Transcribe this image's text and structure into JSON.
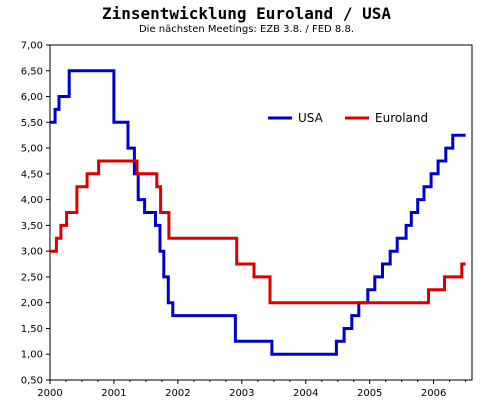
{
  "chart_data": {
    "type": "line",
    "title": "Zinsentwicklung Euroland / USA",
    "subtitle": "Die nächsten Meetings: EZB 3.8. / FED 8.8.",
    "xlabel": "",
    "ylabel": "",
    "xlim": [
      2000,
      2006.6
    ],
    "ylim": [
      0.5,
      7.0
    ],
    "x_ticks": [
      "2000",
      "2001",
      "2002",
      "2003",
      "2004",
      "2005",
      "2006"
    ],
    "y_ticks": [
      "7,00",
      "6,50",
      "6,00",
      "5,50",
      "5,00",
      "4,50",
      "4,00",
      "3,50",
      "3,00",
      "2,50",
      "2,00",
      "1,50",
      "1,00",
      "0,50"
    ],
    "legend_position": "upper-right",
    "grid": false,
    "series": [
      {
        "name": "USA",
        "color": "#0000cc",
        "step": true,
        "x": [
          2000.0,
          2000.08,
          2000.14,
          2000.3,
          2001.0,
          2001.22,
          2001.32,
          2001.38,
          2001.48,
          2001.65,
          2001.72,
          2001.78,
          2001.85,
          2001.92,
          2001.99,
          2002.9,
          2003.47,
          2004.48,
          2004.6,
          2004.72,
          2004.83,
          2004.97,
          2005.08,
          2005.2,
          2005.32,
          2005.43,
          2005.57,
          2005.65,
          2005.75,
          2005.85,
          2005.96,
          2006.07,
          2006.19,
          2006.3,
          2006.43,
          2006.5
        ],
        "values": [
          5.5,
          5.75,
          6.0,
          6.5,
          5.5,
          5.0,
          4.5,
          4.0,
          3.75,
          3.5,
          3.0,
          2.5,
          2.0,
          1.75,
          1.75,
          1.25,
          1.0,
          1.25,
          1.5,
          1.75,
          2.0,
          2.25,
          2.5,
          2.75,
          3.0,
          3.25,
          3.5,
          3.75,
          4.0,
          4.25,
          4.5,
          4.75,
          5.0,
          5.25,
          5.25,
          5.25
        ]
      },
      {
        "name": "Euroland",
        "color": "#dd0000",
        "step": true,
        "x": [
          2000.0,
          2000.1,
          2000.17,
          2000.26,
          2000.42,
          2000.58,
          2000.76,
          2001.36,
          2001.67,
          2001.73,
          2001.86,
          2002.92,
          2003.19,
          2003.44,
          2005.92,
          2006.17,
          2006.44,
          2006.5
        ],
        "values": [
          3.0,
          3.25,
          3.5,
          3.75,
          4.25,
          4.5,
          4.75,
          4.5,
          4.25,
          3.75,
          3.25,
          2.75,
          2.5,
          2.0,
          2.25,
          2.5,
          2.75,
          2.75
        ]
      }
    ]
  }
}
